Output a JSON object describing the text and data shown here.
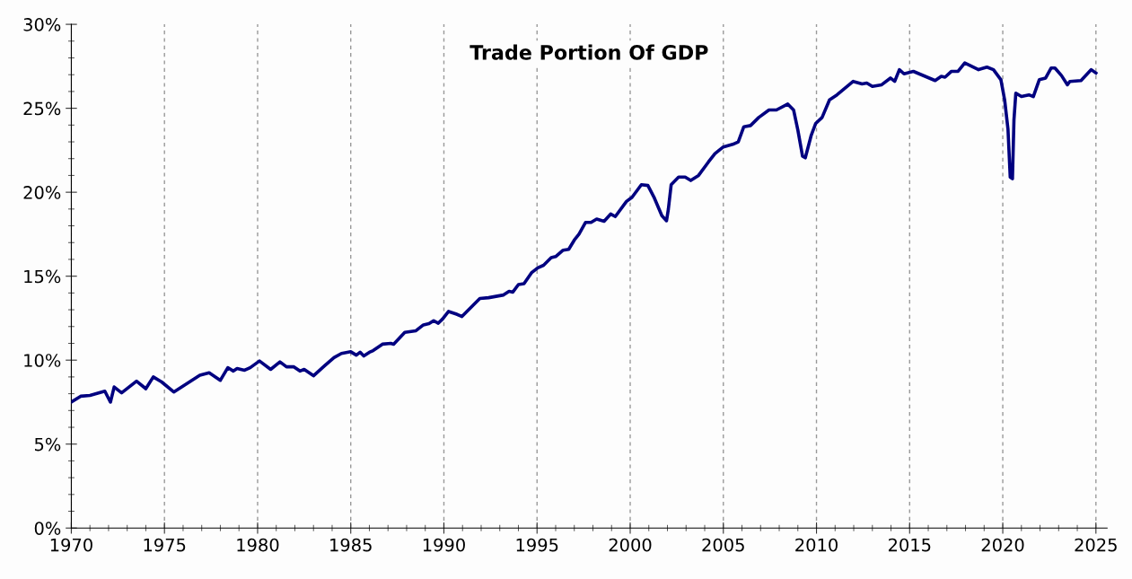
{
  "chart_data": {
    "type": "line",
    "title": "Trade Portion Of GDP",
    "series": [
      {
        "color": "#000080",
        "x": [
          1970.0,
          1970.5,
          1971.0,
          1971.8,
          1972.1,
          1972.3,
          1972.7,
          1973.5,
          1974.0,
          1974.4,
          1974.85,
          1975.5,
          1976.9,
          1977.4,
          1978.0,
          1978.4,
          1978.7,
          1978.9,
          1979.3,
          1979.6,
          1980.1,
          1980.7,
          1981.2,
          1981.55,
          1981.95,
          1982.27,
          1982.5,
          1983.0,
          1983.6,
          1984.1,
          1984.5,
          1985.0,
          1985.3,
          1985.5,
          1985.7,
          1986.0,
          1986.2,
          1986.7,
          1987.15,
          1987.3,
          1987.9,
          1988.5,
          1988.9,
          1989.2,
          1989.45,
          1989.7,
          1989.93,
          1990.25,
          1990.65,
          1990.97,
          1991.93,
          1992.4,
          1993.2,
          1993.5,
          1993.7,
          1994.0,
          1994.3,
          1994.7,
          1995.04,
          1995.35,
          1995.76,
          1996.0,
          1996.4,
          1996.7,
          1997.0,
          1997.25,
          1997.6,
          1997.9,
          1998.2,
          1998.6,
          1998.95,
          1999.2,
          1999.8,
          2000.1,
          2000.6,
          2000.95,
          2001.3,
          2001.7,
          2001.95,
          2002.05,
          2002.2,
          2002.6,
          2002.95,
          2003.25,
          2003.67,
          2004.2,
          2004.55,
          2005.0,
          2005.5,
          2005.8,
          2006.1,
          2006.46,
          2006.9,
          2007.45,
          2007.85,
          2008.46,
          2008.77,
          2009.0,
          2009.25,
          2009.4,
          2009.72,
          2009.96,
          2010.3,
          2010.7,
          2011.1,
          2011.97,
          2012.45,
          2012.7,
          2013.0,
          2013.5,
          2013.97,
          2014.2,
          2014.45,
          2014.7,
          2015.2,
          2016.37,
          2016.7,
          2016.9,
          2017.25,
          2017.6,
          2017.96,
          2018.7,
          2019.15,
          2019.5,
          2019.9,
          2020.1,
          2020.28,
          2020.4,
          2020.52,
          2020.6,
          2020.7,
          2021.0,
          2021.4,
          2021.64,
          2021.96,
          2022.3,
          2022.6,
          2022.8,
          2023.15,
          2023.47,
          2023.6,
          2024.2,
          2024.75,
          2025.0
        ],
        "values": [
          7.5,
          7.85,
          7.9,
          8.15,
          7.5,
          8.4,
          8.05,
          8.75,
          8.3,
          9.0,
          8.7,
          8.1,
          9.1,
          9.25,
          8.8,
          9.55,
          9.35,
          9.5,
          9.4,
          9.55,
          9.95,
          9.45,
          9.9,
          9.6,
          9.6,
          9.35,
          9.45,
          9.07,
          9.67,
          10.15,
          10.4,
          10.5,
          10.3,
          10.47,
          10.25,
          10.47,
          10.57,
          10.95,
          11.0,
          10.95,
          11.65,
          11.75,
          12.1,
          12.17,
          12.35,
          12.2,
          12.45,
          12.9,
          12.75,
          12.6,
          13.67,
          13.72,
          13.88,
          14.1,
          14.05,
          14.5,
          14.55,
          15.2,
          15.5,
          15.65,
          16.1,
          16.17,
          16.55,
          16.6,
          17.15,
          17.5,
          18.2,
          18.2,
          18.4,
          18.27,
          18.7,
          18.55,
          19.45,
          19.7,
          20.45,
          20.4,
          19.65,
          18.6,
          18.3,
          19.0,
          20.45,
          20.9,
          20.9,
          20.7,
          21.0,
          21.8,
          22.3,
          22.7,
          22.85,
          23.0,
          23.9,
          23.97,
          24.45,
          24.9,
          24.9,
          25.25,
          24.9,
          23.7,
          22.15,
          22.05,
          23.4,
          24.1,
          24.45,
          25.5,
          25.8,
          26.6,
          26.45,
          26.5,
          26.3,
          26.4,
          26.8,
          26.6,
          27.3,
          27.05,
          27.2,
          26.65,
          26.9,
          26.85,
          27.2,
          27.2,
          27.7,
          27.3,
          27.45,
          27.3,
          26.7,
          25.5,
          23.75,
          20.9,
          20.8,
          24.3,
          25.9,
          25.7,
          25.8,
          25.7,
          26.7,
          26.8,
          27.4,
          27.4,
          26.95,
          26.4,
          26.6,
          26.65,
          27.3,
          27.1
        ]
      }
    ],
    "xlim": [
      1970,
      2025.6
    ],
    "xticks": [
      1970,
      1975,
      1980,
      1985,
      1990,
      1995,
      2000,
      2005,
      2010,
      2015,
      2020,
      2025
    ],
    "ylim": [
      0,
      30
    ],
    "yticks": [
      {
        "value": 0,
        "label": "0%"
      },
      {
        "value": 5,
        "label": "5%"
      },
      {
        "value": 10,
        "label": "10%"
      },
      {
        "value": 15,
        "label": "15%"
      },
      {
        "value": 20,
        "label": "20%"
      },
      {
        "value": 25,
        "label": "25%"
      },
      {
        "value": 30,
        "label": "30%"
      }
    ],
    "grid": "x",
    "legend": false,
    "marker": "none",
    "line_style": "solid"
  }
}
